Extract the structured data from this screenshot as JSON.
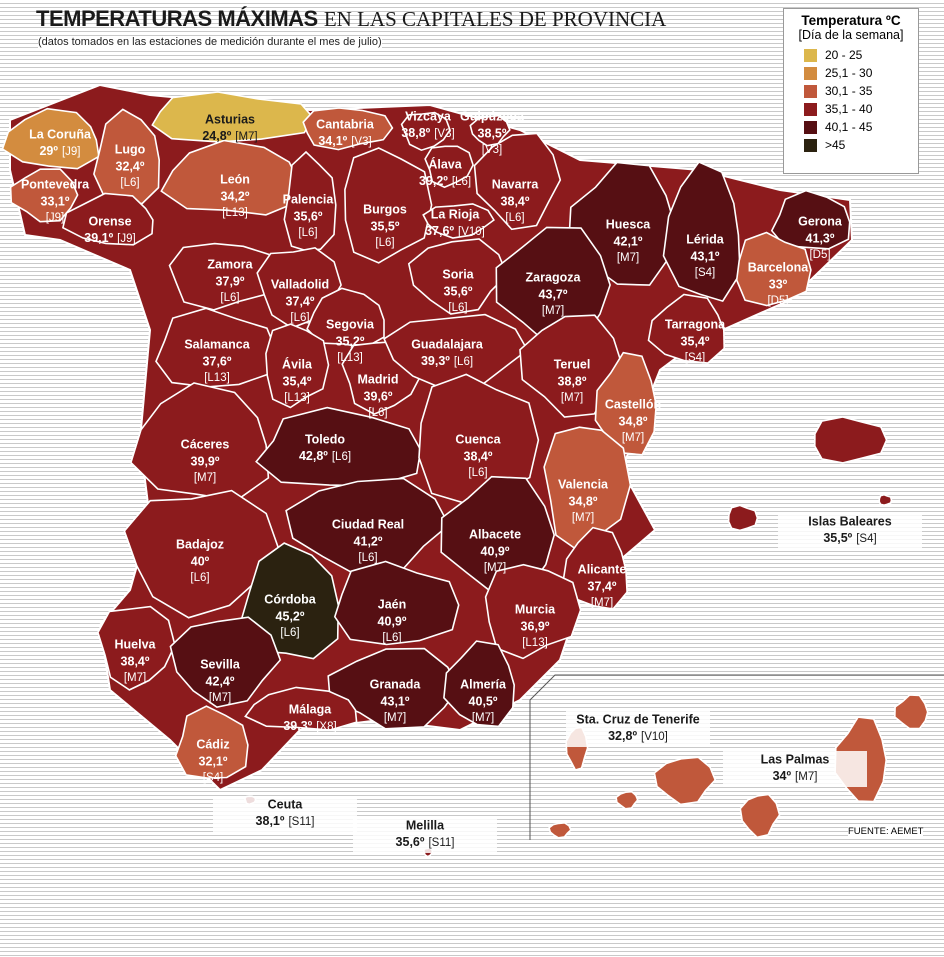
{
  "header": {
    "title_bold": "TEMPERATURAS MÁXIMAS",
    "title_rest": "EN LAS CAPITALES DE PROVINCIA",
    "subtitle": "(datos tomados en las estaciones de medición durante el mes de julio)"
  },
  "legend": {
    "title": "Temperatura ºC",
    "subtitle": "[Día de la semana]",
    "items": [
      {
        "label": "20 - 25",
        "color": "#dcb74c"
      },
      {
        "label": "25,1 - 30",
        "color": "#d38c3f"
      },
      {
        "label": "30,1 - 35",
        "color": "#c0583b"
      },
      {
        "label": "35,1 - 40",
        "color": "#8c1b1d"
      },
      {
        "label": "40,1 - 45",
        "color": "#560f13"
      },
      {
        "label": ">45",
        "color": "#2b2210"
      }
    ]
  },
  "provinces": [
    {
      "name": "La Coruña",
      "temp": "29º",
      "day": "[J9]",
      "color": "#d38c3f"
    },
    {
      "name": "Lugo",
      "temp": "32,4º",
      "day": "[L6]",
      "color": "#c0583b"
    },
    {
      "name": "Asturias",
      "temp": "24,8º",
      "day": "[M7]",
      "color": "#dcb74c"
    },
    {
      "name": "Cantabria",
      "temp": "34,1º",
      "day": "[V3]",
      "color": "#c0583b"
    },
    {
      "name": "Vizcaya",
      "temp": "38,8º",
      "day": "[V3]",
      "color": "#8c1b1d"
    },
    {
      "name": "Guipúzcoa",
      "temp": "38,5º",
      "day": "[V3]",
      "color": "#8c1b1d"
    },
    {
      "name": "Pontevedra",
      "temp": "33,1º",
      "day": "[J9]",
      "color": "#c0583b"
    },
    {
      "name": "Orense",
      "temp": "39,1º",
      "day": "[J9]",
      "color": "#8c1b1d"
    },
    {
      "name": "León",
      "temp": "34,2º",
      "day": "[L13]",
      "color": "#c0583b"
    },
    {
      "name": "Palencia",
      "temp": "35,6º",
      "day": "[L6]",
      "color": "#8c1b1d"
    },
    {
      "name": "Burgos",
      "temp": "35,5º",
      "day": "[L6]",
      "color": "#8c1b1d"
    },
    {
      "name": "Álava",
      "temp": "39,2º",
      "day": "[L6]",
      "color": "#8c1b1d"
    },
    {
      "name": "La Rioja",
      "temp": "37,6º",
      "day": "[V10]",
      "color": "#8c1b1d"
    },
    {
      "name": "Navarra",
      "temp": "38,4º",
      "day": "[L6]",
      "color": "#8c1b1d"
    },
    {
      "name": "Huesca",
      "temp": "42,1º",
      "day": "[M7]",
      "color": "#560f13"
    },
    {
      "name": "Lérida",
      "temp": "43,1º",
      "day": "[S4]",
      "color": "#560f13"
    },
    {
      "name": "Gerona",
      "temp": "41,3º",
      "day": "[D5]",
      "color": "#560f13"
    },
    {
      "name": "Barcelona",
      "temp": "33º",
      "day": "[D5]",
      "color": "#c0583b"
    },
    {
      "name": "Zamora",
      "temp": "37,9º",
      "day": "[L6]",
      "color": "#8c1b1d"
    },
    {
      "name": "Valladolid",
      "temp": "37,4º",
      "day": "[L6]",
      "color": "#8c1b1d"
    },
    {
      "name": "Soria",
      "temp": "35,6º",
      "day": "[L6]",
      "color": "#8c1b1d"
    },
    {
      "name": "Zaragoza",
      "temp": "43,7º",
      "day": "[M7]",
      "color": "#560f13"
    },
    {
      "name": "Tarragona",
      "temp": "35,4º",
      "day": "[S4]",
      "color": "#8c1b1d"
    },
    {
      "name": "Segovia",
      "temp": "35,2º",
      "day": "[L13]",
      "color": "#8c1b1d"
    },
    {
      "name": "Salamanca",
      "temp": "37,6º",
      "day": "[L13]",
      "color": "#8c1b1d"
    },
    {
      "name": "Ávila",
      "temp": "35,4º",
      "day": "[L13]",
      "color": "#8c1b1d"
    },
    {
      "name": "Madrid",
      "temp": "39,6º",
      "day": "[L6]",
      "color": "#8c1b1d"
    },
    {
      "name": "Guadalajara",
      "temp": "39,3º",
      "day": "[L6]",
      "color": "#8c1b1d"
    },
    {
      "name": "Teruel",
      "temp": "38,8º",
      "day": "[M7]",
      "color": "#8c1b1d"
    },
    {
      "name": "Castellón",
      "temp": "34,8º",
      "day": "[M7]",
      "color": "#c0583b"
    },
    {
      "name": "Cáceres",
      "temp": "39,9º",
      "day": "[M7]",
      "color": "#8c1b1d"
    },
    {
      "name": "Toledo",
      "temp": "42,8º",
      "day": "[L6]",
      "color": "#560f13"
    },
    {
      "name": "Cuenca",
      "temp": "38,4º",
      "day": "[L6]",
      "color": "#8c1b1d"
    },
    {
      "name": "Valencia",
      "temp": "34,8º",
      "day": "[M7]",
      "color": "#c0583b"
    },
    {
      "name": "Badajoz",
      "temp": "40º",
      "day": "[L6]",
      "color": "#8c1b1d"
    },
    {
      "name": "Ciudad Real",
      "temp": "41,2º",
      "day": "[L6]",
      "color": "#560f13"
    },
    {
      "name": "Albacete",
      "temp": "40,9º",
      "day": "[M7]",
      "color": "#560f13"
    },
    {
      "name": "Alicante",
      "temp": "37,4º",
      "day": "[M7]",
      "color": "#8c1b1d"
    },
    {
      "name": "Córdoba",
      "temp": "45,2º",
      "day": "[L6]",
      "color": "#2b2210"
    },
    {
      "name": "Jaén",
      "temp": "40,9º",
      "day": "[L6]",
      "color": "#560f13"
    },
    {
      "name": "Murcia",
      "temp": "36,9º",
      "day": "[L13]",
      "color": "#8c1b1d"
    },
    {
      "name": "Huelva",
      "temp": "38,4º",
      "day": "[M7]",
      "color": "#8c1b1d"
    },
    {
      "name": "Sevilla",
      "temp": "42,4º",
      "day": "[M7]",
      "color": "#560f13"
    },
    {
      "name": "Granada",
      "temp": "43,1º",
      "day": "[M7]",
      "color": "#560f13"
    },
    {
      "name": "Almería",
      "temp": "40,5º",
      "day": "[M7]",
      "color": "#560f13"
    },
    {
      "name": "Málaga",
      "temp": "39,3º",
      "day": "[X8]",
      "color": "#8c1b1d"
    },
    {
      "name": "Cádiz",
      "temp": "32,1º",
      "day": "[S4]",
      "color": "#c0583b"
    },
    {
      "name": "Islas Baleares",
      "temp": "35,5º",
      "day": "[S4]",
      "color": "#8c1b1d"
    },
    {
      "name": "Ceuta",
      "temp": "38,1º",
      "day": "[S11]",
      "color": "#8c1b1d"
    },
    {
      "name": "Melilla",
      "temp": "35,6º",
      "day": "[S11]",
      "color": "#8c1b1d"
    },
    {
      "name": "Sta. Cruz de Tenerife",
      "temp": "32,8º",
      "day": "[V10]",
      "color": "#c0583b"
    },
    {
      "name": "Las Palmas",
      "temp": "34º",
      "day": "[M7]",
      "color": "#c0583b"
    }
  ],
  "source": "FUENTE: AEMET"
}
